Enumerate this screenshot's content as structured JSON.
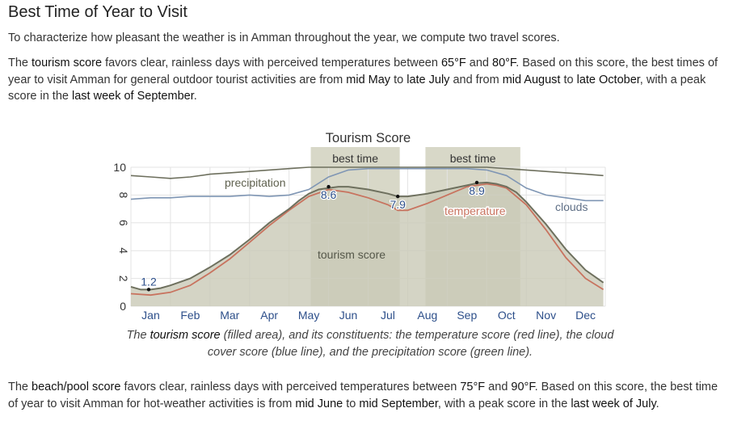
{
  "section": {
    "title": "Best Time of Year to Visit",
    "intro": "To characterize how pleasant the weather is in Amman throughout the year, we compute two travel scores."
  },
  "tourism_paragraph": {
    "t1": "The ",
    "h1": "tourism score",
    "t2": " favors clear, rainless days with perceived temperatures between ",
    "h2": "65°F",
    "t3": " and ",
    "h3": "80°F",
    "t4": ". Based on this score, the best times of year to visit Amman for general outdoor tourist activities are from ",
    "h4": "mid May",
    "t5": " to ",
    "h5": "late July",
    "t6": " and from ",
    "h6": "mid August",
    "t7": " to ",
    "h7": "late October",
    "t8": ", with a peak score in the ",
    "h8": "last week of September",
    "t9": "."
  },
  "caption": {
    "c1": "The ",
    "b1": "tourism score",
    "c2": " (filled area), and its constituents: the temperature score (red line), the cloud cover score (blue line), and the precipitation score (green line)."
  },
  "beach_paragraph": {
    "t1": "The ",
    "h1": "beach/pool score",
    "t2": " favors clear, rainless days with perceived temperatures between ",
    "h2": "75°F",
    "t3": " and ",
    "h3": "90°F",
    "t4": ". Based on this score, the best time of year to visit Amman for hot-weather activities is from ",
    "h4": "mid June",
    "t5": " to ",
    "h5": "mid September",
    "t6": ", with a peak score in the ",
    "h6": "last week of July",
    "t7": "."
  },
  "chart_data": {
    "type": "area",
    "title": "Tourism Score",
    "ylim": [
      0,
      10
    ],
    "yticks": [
      0,
      2,
      4,
      6,
      8,
      10
    ],
    "months": [
      "Jan",
      "Feb",
      "Mar",
      "Apr",
      "May",
      "Jun",
      "Jul",
      "Aug",
      "Sep",
      "Oct",
      "Nov",
      "Dec"
    ],
    "grid": true,
    "colors": {
      "tourism_fill": "#c9c9b6",
      "tourism_line": "#6e705e",
      "temperature": "#c8735f",
      "clouds": "#7f96b4",
      "precipitation": "#6e705e",
      "best_time_band": "#d8d8c8",
      "label_blue": "#2d4f8a",
      "text": "#444444"
    },
    "best_time_bands": [
      {
        "label": "best time",
        "start_month": 4.55,
        "end_month": 6.8
      },
      {
        "label": "best time",
        "start_month": 7.45,
        "end_month": 9.85
      }
    ],
    "series": [
      {
        "name": "tourism score",
        "x": [
          0,
          0.25,
          0.5,
          0.75,
          1,
          1.5,
          2,
          2.5,
          3,
          3.5,
          4,
          4.25,
          4.5,
          4.75,
          5,
          5.25,
          5.5,
          6,
          6.5,
          6.75,
          7,
          7.5,
          8,
          8.5,
          8.75,
          9,
          9.25,
          9.5,
          9.75,
          10,
          10.5,
          11,
          11.5,
          11.95
        ],
        "y": [
          1.4,
          1.2,
          1.2,
          1.3,
          1.5,
          2.0,
          2.8,
          3.7,
          4.8,
          6.0,
          7.0,
          7.6,
          8.1,
          8.4,
          8.5,
          8.6,
          8.6,
          8.4,
          8.1,
          7.9,
          7.9,
          8.1,
          8.4,
          8.7,
          8.85,
          8.9,
          8.8,
          8.6,
          8.2,
          7.5,
          5.9,
          4.1,
          2.6,
          1.7
        ]
      },
      {
        "name": "temperature",
        "x": [
          0,
          0.5,
          1,
          1.5,
          2,
          2.5,
          3,
          3.5,
          4,
          4.5,
          5,
          5.5,
          6,
          6.5,
          6.75,
          7,
          7.5,
          8,
          8.5,
          9,
          9.25,
          9.5,
          10,
          10.5,
          11,
          11.5,
          11.95
        ],
        "y": [
          0.9,
          0.8,
          1.0,
          1.5,
          2.4,
          3.4,
          4.6,
          5.8,
          6.9,
          7.9,
          8.4,
          8.2,
          7.8,
          7.3,
          6.9,
          6.9,
          7.4,
          8.0,
          8.6,
          8.8,
          8.7,
          8.5,
          7.3,
          5.5,
          3.5,
          2.0,
          1.2
        ]
      },
      {
        "name": "clouds",
        "x": [
          0,
          0.5,
          1,
          1.5,
          2,
          2.5,
          3,
          3.5,
          4,
          4.5,
          5,
          5.5,
          6,
          6.5,
          7,
          7.5,
          8,
          8.5,
          9,
          9.5,
          10,
          10.5,
          11,
          11.5,
          11.95
        ],
        "y": [
          7.7,
          7.8,
          7.8,
          7.9,
          7.9,
          7.9,
          8.0,
          7.9,
          8.0,
          8.4,
          9.3,
          9.8,
          9.9,
          9.9,
          9.9,
          9.9,
          9.9,
          9.9,
          9.8,
          9.4,
          8.5,
          8.0,
          7.8,
          7.6,
          7.6
        ]
      },
      {
        "name": "precipitation",
        "x": [
          0,
          0.5,
          1,
          1.5,
          2,
          2.5,
          3,
          3.5,
          4,
          4.5,
          5,
          6,
          7,
          8,
          9,
          9.5,
          10,
          10.5,
          11,
          11.5,
          11.95
        ],
        "y": [
          9.4,
          9.3,
          9.2,
          9.3,
          9.5,
          9.6,
          9.7,
          9.8,
          9.9,
          10.0,
          10.0,
          10.0,
          10.0,
          10.0,
          10.0,
          9.9,
          9.8,
          9.7,
          9.6,
          9.5,
          9.4
        ]
      }
    ],
    "annotations": [
      {
        "text": "1.2",
        "month": 0.45,
        "value": 1.2
      },
      {
        "text": "8.6",
        "month": 5.0,
        "value": 8.6
      },
      {
        "text": "7.9",
        "month": 6.75,
        "value": 7.9
      },
      {
        "text": "8.9",
        "month": 8.75,
        "value": 8.9
      }
    ],
    "series_labels": {
      "precipitation": "precipitation",
      "temperature": "temperature",
      "clouds": "clouds",
      "tourism": "tourism score"
    }
  }
}
